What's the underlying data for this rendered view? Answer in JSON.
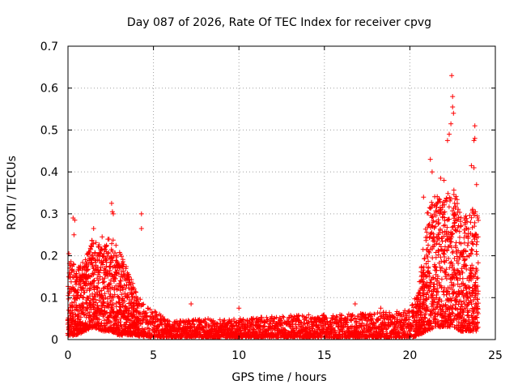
{
  "chart_data": {
    "type": "scatter",
    "title": "Day 087 of 2026, Rate Of TEC Index for receiver cpvg",
    "xlabel": "GPS time / hours",
    "ylabel": "ROTI / TECUs",
    "xlim": [
      0,
      25
    ],
    "ylim": [
      0,
      0.7
    ],
    "xticks": [
      "0",
      "5",
      "10",
      "15",
      "20",
      "25"
    ],
    "yticks": [
      "0",
      "0.1",
      "0.2",
      "0.3",
      "0.4",
      "0.5",
      "0.6",
      "0.7"
    ],
    "grid": true,
    "marker": "+",
    "color": "#ff0000",
    "series": [
      {
        "name": "ROTI",
        "envelope": [
          {
            "t": 0.0,
            "low": 0.01,
            "high": 0.2
          },
          {
            "t": 0.5,
            "low": 0.01,
            "high": 0.17
          },
          {
            "t": 1.0,
            "low": 0.02,
            "high": 0.19
          },
          {
            "t": 1.5,
            "low": 0.03,
            "high": 0.25
          },
          {
            "t": 2.0,
            "low": 0.02,
            "high": 0.22
          },
          {
            "t": 2.5,
            "low": 0.02,
            "high": 0.25
          },
          {
            "t": 3.0,
            "low": 0.01,
            "high": 0.21
          },
          {
            "t": 3.5,
            "low": 0.01,
            "high": 0.17
          },
          {
            "t": 4.0,
            "low": 0.01,
            "high": 0.11
          },
          {
            "t": 4.5,
            "low": 0.005,
            "high": 0.08
          },
          {
            "t": 5.0,
            "low": 0.005,
            "high": 0.07
          },
          {
            "t": 6.0,
            "low": 0.005,
            "high": 0.045
          },
          {
            "t": 8.0,
            "low": 0.005,
            "high": 0.05
          },
          {
            "t": 10.0,
            "low": 0.005,
            "high": 0.05
          },
          {
            "t": 12.0,
            "low": 0.005,
            "high": 0.055
          },
          {
            "t": 14.0,
            "low": 0.005,
            "high": 0.06
          },
          {
            "t": 16.0,
            "low": 0.005,
            "high": 0.06
          },
          {
            "t": 18.0,
            "low": 0.005,
            "high": 0.065
          },
          {
            "t": 20.0,
            "low": 0.005,
            "high": 0.07
          },
          {
            "t": 20.5,
            "low": 0.01,
            "high": 0.12
          },
          {
            "t": 21.0,
            "low": 0.02,
            "high": 0.3
          },
          {
            "t": 21.5,
            "low": 0.03,
            "high": 0.35
          },
          {
            "t": 22.0,
            "low": 0.03,
            "high": 0.33
          },
          {
            "t": 22.5,
            "low": 0.03,
            "high": 0.38
          },
          {
            "t": 23.0,
            "low": 0.02,
            "high": 0.3
          },
          {
            "t": 23.5,
            "low": 0.02,
            "high": 0.32
          },
          {
            "t": 24.0,
            "low": 0.02,
            "high": 0.3
          }
        ],
        "outliers": [
          {
            "x": 0.05,
            "y": 0.205
          },
          {
            "x": 0.3,
            "y": 0.29
          },
          {
            "x": 0.4,
            "y": 0.285
          },
          {
            "x": 0.35,
            "y": 0.25
          },
          {
            "x": 1.5,
            "y": 0.265
          },
          {
            "x": 2.0,
            "y": 0.245
          },
          {
            "x": 2.55,
            "y": 0.325
          },
          {
            "x": 2.6,
            "y": 0.305
          },
          {
            "x": 2.65,
            "y": 0.3
          },
          {
            "x": 4.3,
            "y": 0.3
          },
          {
            "x": 4.3,
            "y": 0.265
          },
          {
            "x": 7.2,
            "y": 0.085
          },
          {
            "x": 10.0,
            "y": 0.075
          },
          {
            "x": 16.8,
            "y": 0.085
          },
          {
            "x": 18.3,
            "y": 0.075
          },
          {
            "x": 20.8,
            "y": 0.34
          },
          {
            "x": 21.2,
            "y": 0.43
          },
          {
            "x": 21.3,
            "y": 0.4
          },
          {
            "x": 21.8,
            "y": 0.385
          },
          {
            "x": 22.0,
            "y": 0.38
          },
          {
            "x": 22.2,
            "y": 0.475
          },
          {
            "x": 22.3,
            "y": 0.49
          },
          {
            "x": 22.45,
            "y": 0.63
          },
          {
            "x": 22.5,
            "y": 0.58
          },
          {
            "x": 22.5,
            "y": 0.555
          },
          {
            "x": 22.55,
            "y": 0.54
          },
          {
            "x": 22.4,
            "y": 0.515
          },
          {
            "x": 23.6,
            "y": 0.415
          },
          {
            "x": 23.75,
            "y": 0.41
          },
          {
            "x": 23.75,
            "y": 0.475
          },
          {
            "x": 23.8,
            "y": 0.48
          },
          {
            "x": 23.8,
            "y": 0.51
          },
          {
            "x": 23.9,
            "y": 0.37
          }
        ]
      }
    ]
  }
}
